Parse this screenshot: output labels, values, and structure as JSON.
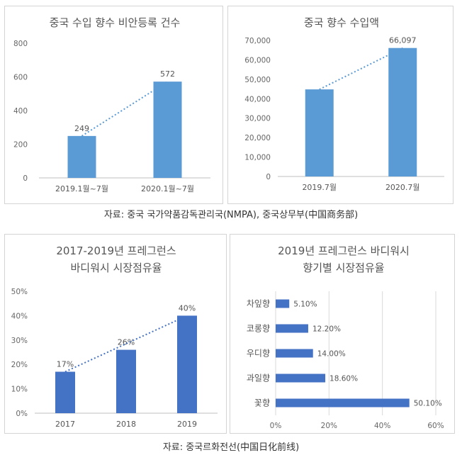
{
  "sources": {
    "top": "자료: 중국 국가약품감독관리국(NMPA), 중국상무부(中国商务部)",
    "bottom": "자료: 중국르화전선(中国日化前线)"
  },
  "chart_data": [
    {
      "type": "bar",
      "title": "중국 수입 향수 비안등록 건수",
      "categories": [
        "2019.1월~7월",
        "2020.1월~7월"
      ],
      "values": [
        249,
        572
      ],
      "data_labels": [
        "249",
        "572"
      ],
      "ylim": [
        0,
        800
      ],
      "y_ticks": [
        0,
        200,
        400,
        600,
        800
      ],
      "y_tick_labels": [
        "0",
        "200",
        "400",
        "600",
        "800"
      ],
      "trendline": "dotted",
      "bar_color": "#5b9bd5",
      "grid": false
    },
    {
      "type": "bar",
      "title": "중국 향수 수입액",
      "categories": [
        "2019.7월",
        "2020.7월"
      ],
      "values": [
        44800,
        66097
      ],
      "data_labels": [
        "",
        "66,097"
      ],
      "ylim": [
        0,
        70000
      ],
      "y_ticks": [
        0,
        10000,
        20000,
        30000,
        40000,
        50000,
        60000,
        70000
      ],
      "y_tick_labels": [
        "0",
        "10,000",
        "20,000",
        "30,000",
        "40,000",
        "50,000",
        "60,000",
        "70,000"
      ],
      "trendline": "dotted",
      "bar_color": "#5b9bd5",
      "grid": false
    },
    {
      "type": "bar",
      "title": "2017-2019년 프레그런스 바디워시 시장점유율",
      "title_lines": [
        "2017-2019년 프레그런스",
        "바디워시 시장점유율"
      ],
      "categories": [
        "2017",
        "2018",
        "2019"
      ],
      "values": [
        17,
        26,
        40
      ],
      "data_labels": [
        "17%",
        "26%",
        "40%"
      ],
      "ylim": [
        0,
        50
      ],
      "y_ticks": [
        0,
        10,
        20,
        30,
        40,
        50
      ],
      "y_tick_labels": [
        "0%",
        "10%",
        "20%",
        "30%",
        "40%",
        "50%"
      ],
      "trendline": "dotted",
      "bar_color": "#4472c4",
      "grid": false
    },
    {
      "type": "bar",
      "orientation": "horizontal",
      "title": "2019년 프레그런스 바디워시 향기별 시장점유율",
      "title_lines": [
        "2019년 프레그런스 바디워시",
        "향기별 시장점유율"
      ],
      "categories": [
        "차잎향",
        "코롱향",
        "우디향",
        "과일향",
        "꽃향"
      ],
      "values": [
        5.1,
        12.2,
        14.0,
        18.6,
        50.1
      ],
      "data_labels": [
        "5.10%",
        "12.20%",
        "14.00%",
        "18.60%",
        "50.10%"
      ],
      "xlim": [
        0,
        60
      ],
      "x_ticks": [
        0,
        20,
        40,
        60
      ],
      "x_tick_labels": [
        "0%",
        "20%",
        "40%",
        "60%"
      ],
      "bar_color": "#4472c4",
      "grid": true
    }
  ]
}
